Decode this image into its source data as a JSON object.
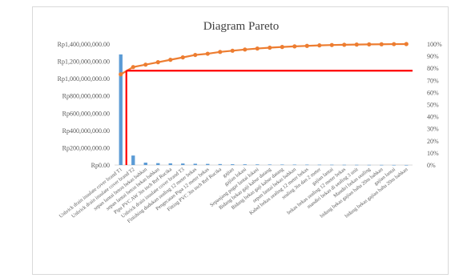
{
  "chart_data": {
    "type": "bar",
    "title": "Diagram Pareto",
    "y_left_ticks": [
      "Rp0.00",
      "Rp200,000,000.00",
      "Rp400,000,000.00",
      "Rp600,000,000.00",
      "Rp800,000,000.00",
      "Rp1,000,000,000.00",
      "Rp1,200,000,000.00",
      "Rp1,400,000,000.00"
    ],
    "y_right_ticks": [
      "0%",
      "10%",
      "20%",
      "30%",
      "40%",
      "50%",
      "60%",
      "70%",
      "80%",
      "90%",
      "100%"
    ],
    "ylim_left": [
      0,
      1400000000
    ],
    "ylim_right": [
      0,
      100
    ],
    "categories": [
      "Unbrick drain insulate cover brand T1",
      "Unbrick drain insulate cover brand T2",
      "sepan lantai beton bekas bahkan",
      "sepan lantai beton bekas bahkan",
      "Pipa PVC AW 3in inch Ref Rucika",
      "Unbrick drain insulate cover brand T3",
      "Finishing dudukan sealing 12 meter bekas",
      "Pengecatan Pipa 12 meter bekas",
      "Fitting PVC 3in inch Ref Rucika",
      "gajian",
      "gajian lokasi",
      "Sepanjang pagar lantai lokasi",
      "Bidang bekas gaji kabur datang",
      "Bidang bekas gaji kabur datang",
      "sepan lantai bekas bahkan",
      "Kabel bekas sealing 12 meter bekas",
      "sealing 3in dan 2 meter",
      "gajian lantai",
      "bekas bekas sealing 12 meter bekas",
      "mandiri bekas di sealing 3 unit",
      "Mandiri bekas sealing",
      "bidang bekas gajian baha 20m bahkan",
      "gajian lantai",
      "bidang bekas gajian baha 20m bahkan"
    ],
    "series": [
      {
        "kind": "bar",
        "axis": "left",
        "values": [
          1280000000,
          110000000,
          28000000,
          22000000,
          20000000,
          18000000,
          15000000,
          13000000,
          11000000,
          9000000,
          8000000,
          7000000,
          6000000,
          5500000,
          5000000,
          4500000,
          4000000,
          3500000,
          3000000,
          2500000,
          2000000,
          1500000,
          1000000,
          500000
        ],
        "color": "#5b9bd5"
      },
      {
        "kind": "line",
        "axis": "right",
        "values": [
          75,
          81,
          83,
          85,
          87,
          89,
          91,
          92,
          93.5,
          94.5,
          95.5,
          96.3,
          97,
          97.6,
          98.1,
          98.5,
          98.9,
          99.2,
          99.4,
          99.6,
          99.75,
          99.85,
          99.95,
          100
        ],
        "color": "#ed7d31"
      }
    ],
    "reference_line": {
      "value_percent": 78,
      "color": "#ff0000",
      "from_category": 1
    },
    "grid": false,
    "legend": "none"
  }
}
